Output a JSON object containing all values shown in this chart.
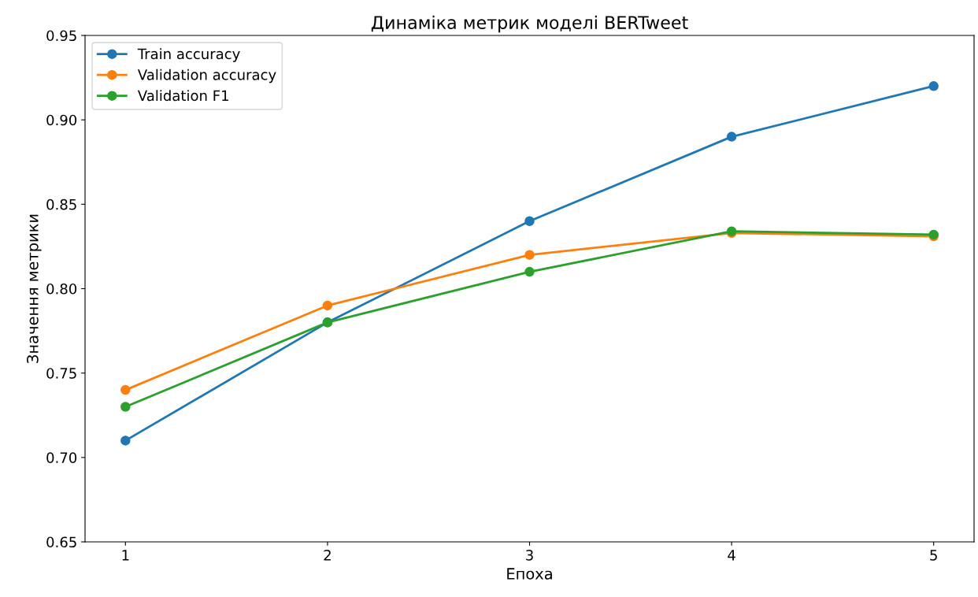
{
  "chart_data": {
    "type": "line",
    "title": "Динаміка метрик моделі BERTweet",
    "xlabel": "Епоха",
    "ylabel": "Значення метрики",
    "x": [
      1,
      2,
      3,
      4,
      5
    ],
    "series": [
      {
        "name": "Train accuracy",
        "color": "#1f77b4",
        "values": [
          0.71,
          0.78,
          0.84,
          0.89,
          0.92
        ]
      },
      {
        "name": "Validation accuracy",
        "color": "#ff7f0e",
        "values": [
          0.74,
          0.79,
          0.82,
          0.833,
          0.831
        ]
      },
      {
        "name": "Validation F1",
        "color": "#2ca02c",
        "values": [
          0.73,
          0.78,
          0.81,
          0.834,
          0.832
        ]
      }
    ],
    "xlim": [
      0.8,
      5.2
    ],
    "xticks": [
      1,
      2,
      3,
      4,
      5
    ],
    "ylim": [
      0.65,
      0.95
    ],
    "yticks": [
      {
        "value": 0.65,
        "label": "0.65"
      },
      {
        "value": 0.7,
        "label": "0.70"
      },
      {
        "value": 0.75,
        "label": "0.75"
      },
      {
        "value": 0.8,
        "label": "0.80"
      },
      {
        "value": 0.85,
        "label": "0.85"
      },
      {
        "value": 0.9,
        "label": "0.90"
      },
      {
        "value": 0.95,
        "label": "0.95"
      }
    ],
    "marker": "circle",
    "line_style": "solid",
    "legend": "top left",
    "grid": false
  }
}
